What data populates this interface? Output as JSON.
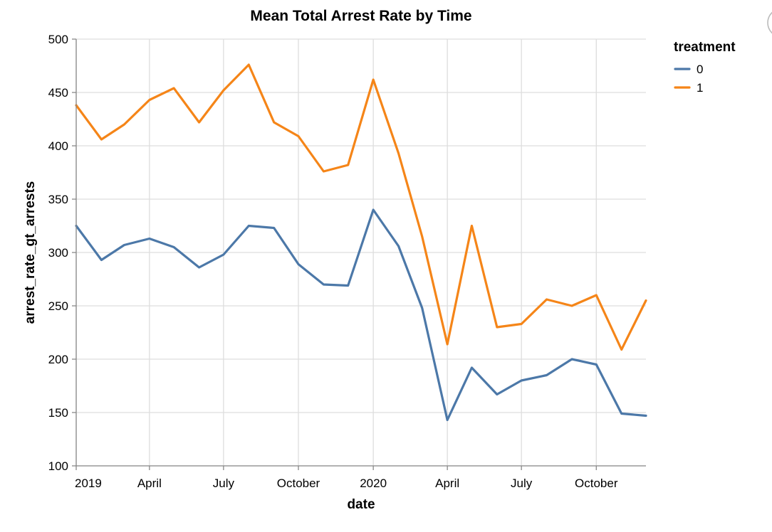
{
  "chart_data": {
    "type": "line",
    "title": "Mean Total Arrest Rate by Time",
    "xlabel": "date",
    "ylabel": "arrest_rate_gt_arrests",
    "ylim": [
      100,
      500
    ],
    "y_ticks": [
      100,
      150,
      200,
      250,
      300,
      350,
      400,
      450,
      500
    ],
    "x_range": [
      "2019-01-01",
      "2020-12-01"
    ],
    "x_ticks": [
      {
        "date": "2019-01-01",
        "label": "2019"
      },
      {
        "date": "2019-04-01",
        "label": "April"
      },
      {
        "date": "2019-07-01",
        "label": "July"
      },
      {
        "date": "2019-10-01",
        "label": "October"
      },
      {
        "date": "2020-01-01",
        "label": "2020"
      },
      {
        "date": "2020-04-01",
        "label": "April"
      },
      {
        "date": "2020-07-01",
        "label": "July"
      },
      {
        "date": "2020-10-01",
        "label": "October"
      }
    ],
    "grid": true,
    "legend": {
      "title": "treatment",
      "placement": "top-right"
    },
    "x": [
      "2019-01-01",
      "2019-02-01",
      "2019-03-01",
      "2019-04-01",
      "2019-05-01",
      "2019-06-01",
      "2019-07-01",
      "2019-08-01",
      "2019-09-01",
      "2019-10-01",
      "2019-11-01",
      "2019-12-01",
      "2020-01-01",
      "2020-02-01",
      "2020-03-01",
      "2020-04-01",
      "2020-05-01",
      "2020-06-01",
      "2020-07-01",
      "2020-08-01",
      "2020-09-01",
      "2020-10-01",
      "2020-11-01",
      "2020-12-01"
    ],
    "series": [
      {
        "name": "0",
        "color": "#4c78a8",
        "values": [
          325,
          293,
          307,
          313,
          305,
          286,
          298,
          325,
          323,
          289,
          270,
          269,
          340,
          306,
          248,
          143,
          192,
          167,
          180,
          185,
          200,
          195,
          149,
          147
        ]
      },
      {
        "name": "1",
        "color": "#f58518",
        "values": [
          438,
          406,
          420,
          443,
          454,
          422,
          452,
          476,
          422,
          409,
          376,
          382,
          462,
          393,
          315,
          214,
          325,
          230,
          233,
          256,
          250,
          260,
          209,
          255
        ]
      }
    ]
  }
}
